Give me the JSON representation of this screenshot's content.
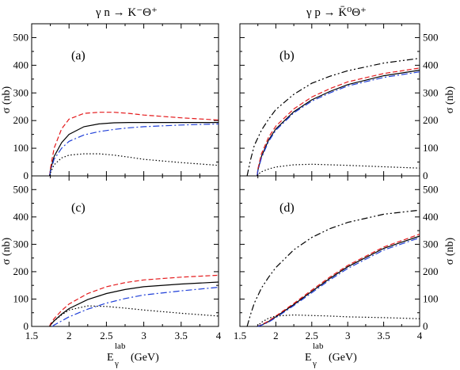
{
  "titles": {
    "left_html": "γ n → K⁻Θ⁺",
    "right_html": "γ p → K̄⁰Θ⁺"
  },
  "xlabel": {
    "main": "E",
    "sub": "γ",
    "sup": "lab",
    "unit": "(GeV)"
  },
  "ylabel": "σ (nb)",
  "colors": {
    "solid": "#000000",
    "dashed": "#e41a1c",
    "dashdot": "#1f3fd8",
    "dashdotdot": "#000000",
    "dotted": "#000000"
  },
  "chart_data": [
    {
      "type": "line",
      "panel": "(a)",
      "title": "γ n → K⁻Θ⁺",
      "xlim": [
        1.5,
        4
      ],
      "ylim": [
        0,
        550
      ],
      "xlabel": "",
      "ylabel": "σ (nb)",
      "xticks": [
        "1.5",
        "2",
        "2.5",
        "3",
        "3.5",
        "4"
      ],
      "yticks": [
        "0",
        "100",
        "200",
        "300",
        "400",
        "500"
      ],
      "series": [
        {
          "style": "solid",
          "x": [
            1.74,
            1.75,
            1.8,
            1.9,
            2.0,
            2.2,
            2.4,
            2.6,
            2.8,
            3.0,
            3.5,
            4.0
          ],
          "y": [
            0,
            20,
            70,
            120,
            150,
            178,
            188,
            192,
            193,
            193,
            193,
            193
          ]
        },
        {
          "style": "dashed",
          "x": [
            1.74,
            1.75,
            1.8,
            1.9,
            2.0,
            2.2,
            2.4,
            2.6,
            2.8,
            3.0,
            3.5,
            4.0
          ],
          "y": [
            0,
            25,
            100,
            170,
            205,
            226,
            230,
            230,
            226,
            220,
            210,
            202
          ]
        },
        {
          "style": "dashdot",
          "x": [
            1.74,
            1.75,
            1.8,
            1.9,
            2.0,
            2.2,
            2.4,
            2.6,
            2.8,
            3.0,
            3.5,
            4.0
          ],
          "y": [
            0,
            15,
            60,
            100,
            125,
            148,
            160,
            168,
            174,
            178,
            184,
            188
          ]
        },
        {
          "style": "dotted",
          "x": [
            1.74,
            1.75,
            1.8,
            1.9,
            2.0,
            2.2,
            2.4,
            2.6,
            2.8,
            3.0,
            3.5,
            4.0
          ],
          "y": [
            0,
            10,
            40,
            65,
            75,
            80,
            80,
            75,
            68,
            60,
            48,
            38
          ]
        }
      ]
    },
    {
      "type": "line",
      "panel": "(b)",
      "title": "γ p → K̄⁰Θ⁺",
      "xlim": [
        1.5,
        4
      ],
      "ylim": [
        0,
        550
      ],
      "xlabel": "",
      "ylabel": "σ (nb)",
      "xticks": [
        "1.5",
        "2",
        "2.5",
        "3",
        "3.5",
        "4"
      ],
      "yticks": [
        "0",
        "100",
        "200",
        "300",
        "400",
        "500"
      ],
      "series": [
        {
          "style": "solid",
          "x": [
            1.74,
            1.75,
            1.8,
            1.9,
            2.0,
            2.25,
            2.5,
            2.75,
            3.0,
            3.5,
            4.0
          ],
          "y": [
            0,
            20,
            70,
            130,
            170,
            232,
            275,
            305,
            330,
            362,
            382
          ]
        },
        {
          "style": "dashed",
          "x": [
            1.74,
            1.75,
            1.8,
            1.9,
            2.0,
            2.25,
            2.5,
            2.75,
            3.0,
            3.5,
            4.0
          ],
          "y": [
            0,
            25,
            80,
            140,
            180,
            242,
            285,
            315,
            340,
            370,
            390
          ]
        },
        {
          "style": "dashdot",
          "x": [
            1.74,
            1.75,
            1.8,
            1.9,
            2.0,
            2.25,
            2.5,
            2.75,
            3.0,
            3.5,
            4.0
          ],
          "y": [
            0,
            18,
            65,
            125,
            165,
            228,
            270,
            300,
            325,
            356,
            376
          ]
        },
        {
          "style": "dashdotdot",
          "x": [
            1.6,
            1.65,
            1.7,
            1.8,
            1.9,
            2.0,
            2.25,
            2.5,
            2.75,
            3.0,
            3.5,
            4.0
          ],
          "y": [
            0,
            60,
            110,
            165,
            205,
            240,
            295,
            335,
            360,
            380,
            408,
            425
          ]
        },
        {
          "style": "dotted",
          "x": [
            1.74,
            1.75,
            1.8,
            1.9,
            2.0,
            2.25,
            2.5,
            2.75,
            3.0,
            3.5,
            4.0
          ],
          "y": [
            0,
            5,
            15,
            25,
            32,
            40,
            42,
            40,
            38,
            33,
            28
          ]
        }
      ]
    },
    {
      "type": "line",
      "panel": "(c)",
      "title": "",
      "xlim": [
        1.5,
        4
      ],
      "ylim": [
        0,
        550
      ],
      "xlabel": "E γ lab (GeV)",
      "ylabel": "σ (nb)",
      "xticks": [
        "1.5",
        "2",
        "2.5",
        "3",
        "3.5",
        "4"
      ],
      "yticks": [
        "0",
        "100",
        "200",
        "300",
        "400",
        "500"
      ],
      "series": [
        {
          "style": "solid",
          "x": [
            1.74,
            1.75,
            1.8,
            1.9,
            2.0,
            2.25,
            2.5,
            2.75,
            3.0,
            3.5,
            4.0
          ],
          "y": [
            0,
            5,
            20,
            45,
            65,
            98,
            120,
            135,
            145,
            155,
            162
          ]
        },
        {
          "style": "dashed",
          "x": [
            1.74,
            1.75,
            1.8,
            1.9,
            2.0,
            2.25,
            2.5,
            2.75,
            3.0,
            3.5,
            4.0
          ],
          "y": [
            0,
            8,
            28,
            58,
            82,
            120,
            145,
            160,
            170,
            180,
            187
          ]
        },
        {
          "style": "dashdot",
          "x": [
            1.78,
            1.8,
            1.9,
            2.0,
            2.25,
            2.5,
            2.75,
            3.0,
            3.5,
            4.0
          ],
          "y": [
            0,
            5,
            20,
            35,
            63,
            85,
            102,
            115,
            130,
            143
          ]
        },
        {
          "style": "dotted",
          "x": [
            1.74,
            1.75,
            1.8,
            1.9,
            2.0,
            2.25,
            2.5,
            2.75,
            3.0,
            3.5,
            4.0
          ],
          "y": [
            0,
            5,
            20,
            42,
            60,
            75,
            73,
            67,
            60,
            48,
            38
          ]
        }
      ]
    },
    {
      "type": "line",
      "panel": "(d)",
      "title": "",
      "xlim": [
        1.5,
        4
      ],
      "ylim": [
        0,
        550
      ],
      "xlabel": "E γ lab (GeV)",
      "ylabel": "σ (nb)",
      "xticks": [
        "1.5",
        "2",
        "2.5",
        "3",
        "3.5",
        "4"
      ],
      "yticks": [
        "0",
        "100",
        "200",
        "300",
        "400",
        "500"
      ],
      "series": [
        {
          "style": "solid",
          "x": [
            1.74,
            1.8,
            1.9,
            2.0,
            2.25,
            2.5,
            2.75,
            3.0,
            3.5,
            4.0
          ],
          "y": [
            0,
            5,
            18,
            35,
            80,
            128,
            175,
            218,
            285,
            330
          ]
        },
        {
          "style": "dashed",
          "x": [
            1.74,
            1.8,
            1.9,
            2.0,
            2.25,
            2.5,
            2.75,
            3.0,
            3.5,
            4.0
          ],
          "y": [
            0,
            6,
            20,
            38,
            84,
            133,
            180,
            223,
            290,
            337
          ]
        },
        {
          "style": "dashdot",
          "x": [
            1.74,
            1.8,
            1.9,
            2.0,
            2.25,
            2.5,
            2.75,
            3.0,
            3.5,
            4.0
          ],
          "y": [
            0,
            4,
            16,
            32,
            76,
            123,
            170,
            212,
            279,
            324
          ]
        },
        {
          "style": "dashdotdot",
          "x": [
            1.6,
            1.65,
            1.7,
            1.8,
            1.9,
            2.0,
            2.25,
            2.5,
            2.75,
            3.0,
            3.5,
            4.0
          ],
          "y": [
            0,
            45,
            85,
            140,
            180,
            215,
            280,
            325,
            357,
            380,
            410,
            425
          ]
        },
        {
          "style": "dotted",
          "x": [
            1.74,
            1.8,
            1.9,
            2.0,
            2.25,
            2.5,
            2.75,
            3.0,
            3.5,
            4.0
          ],
          "y": [
            0,
            15,
            30,
            38,
            42,
            40,
            38,
            35,
            32,
            28
          ]
        }
      ]
    }
  ]
}
